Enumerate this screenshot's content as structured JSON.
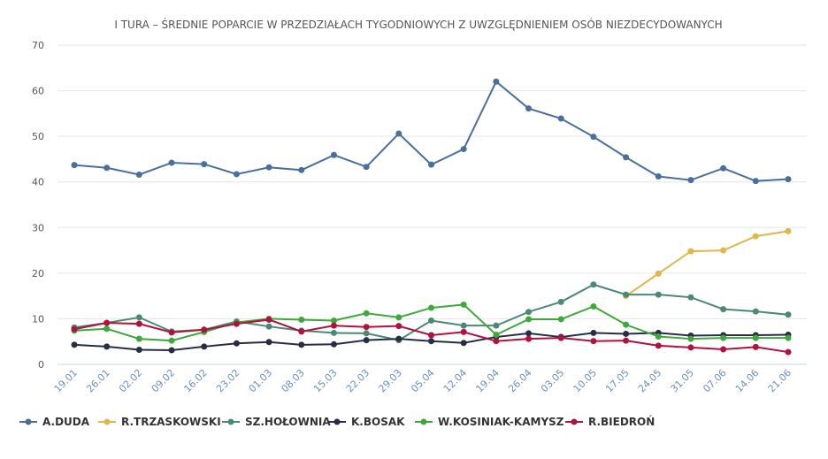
{
  "chart_data": {
    "type": "line",
    "title": "I TURA – ŚREDNIE POPARCIE W PRZEDZIAŁACH TYGODNIOWYCH Z UWZGLĘDNIENIEM OSÓB NIEZDECYDOWANYCH",
    "ylim": [
      0,
      70
    ],
    "yticks": [
      0,
      10,
      20,
      30,
      40,
      50,
      60,
      70
    ],
    "grid": true,
    "legend": "bottom-left",
    "x": [
      "19.01",
      "26.01",
      "02.02",
      "09.02",
      "16.02",
      "23.02",
      "01.03",
      "08.03",
      "15.03",
      "22.03",
      "29.03",
      "05.04",
      "12.04",
      "19.04",
      "26.04",
      "03.05",
      "10.05",
      "17.05",
      "24.05",
      "31.05",
      "07.06",
      "14.06",
      "21.06"
    ],
    "series": [
      {
        "name": "A.DUDA",
        "color": "#4a6f9c",
        "values": [
          43.7,
          43.1,
          41.6,
          44.2,
          43.9,
          41.7,
          43.2,
          42.6,
          45.9,
          43.3,
          50.6,
          43.8,
          47.2,
          62,
          56.1,
          53.9,
          49.9,
          45.4,
          41.2,
          40.4,
          43,
          40.2,
          40.6
        ]
      },
      {
        "name": "R.TRZASKOWSKI",
        "color": "#e0b84a",
        "values": [
          null,
          null,
          null,
          null,
          null,
          null,
          null,
          null,
          null,
          null,
          null,
          null,
          null,
          null,
          null,
          null,
          null,
          15.0,
          19.9,
          24.8,
          25.0,
          28.1,
          29.2
        ]
      },
      {
        "name": "SZ.HOŁOWNIA",
        "color": "#4a8a74",
        "values": [
          8.1,
          9.1,
          10.3,
          7.2,
          7.6,
          9.4,
          8.3,
          7.4,
          6.9,
          6.8,
          5.3,
          9.6,
          8.5,
          8.5,
          11.5,
          13.7,
          17.5,
          15.3,
          15.3,
          14.7,
          12.1,
          11.6,
          10.9
        ]
      },
      {
        "name": "K.BOSAK",
        "color": "#262e45",
        "values": [
          4.3,
          3.9,
          3.2,
          3.1,
          3.9,
          4.6,
          4.9,
          4.3,
          4.4,
          5.3,
          5.6,
          5.1,
          4.7,
          6.0,
          6.8,
          6.0,
          6.9,
          6.7,
          6.9,
          6.3,
          6.4,
          6.4,
          6.5
        ]
      },
      {
        "name": "W.KOSINIAK-KAMYSZ",
        "color": "#3ea83a",
        "values": [
          7.4,
          7.8,
          5.6,
          5.2,
          7.1,
          9.2,
          10.0,
          9.8,
          9.6,
          11.2,
          10.3,
          12.4,
          13.1,
          6.5,
          9.9,
          9.9,
          12.7,
          8.7,
          6.1,
          5.6,
          5.8,
          5.8,
          5.8
        ]
      },
      {
        "name": "R.BIEDROŃ",
        "color": "#b0123f",
        "values": [
          7.7,
          9.1,
          8.9,
          7.0,
          7.6,
          8.9,
          9.8,
          7.2,
          8.5,
          8.2,
          8.4,
          6.4,
          7.1,
          5.1,
          5.6,
          5.8,
          5.1,
          5.2,
          4.1,
          3.7,
          3.3,
          3.8,
          2.7
        ]
      }
    ]
  }
}
